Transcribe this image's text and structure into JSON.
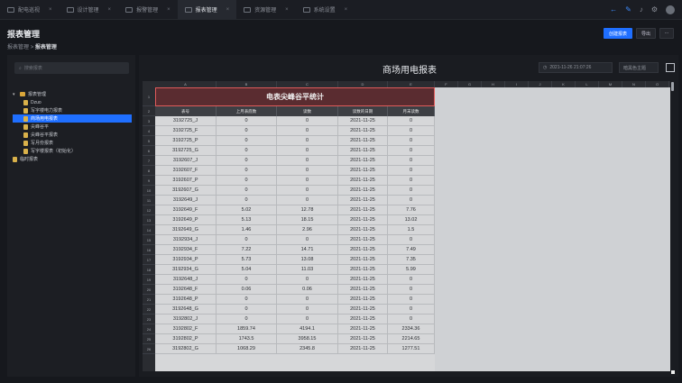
{
  "topbar": {
    "tabs": [
      {
        "label": "配电巡视",
        "active": false
      },
      {
        "label": "设计管理",
        "active": false
      },
      {
        "label": "报警管理",
        "active": false
      },
      {
        "label": "报表管理",
        "active": true
      },
      {
        "label": "资源管理",
        "active": false
      },
      {
        "label": "系统设置",
        "active": false
      }
    ]
  },
  "header": {
    "title": "报表管理",
    "breadcrumb_root": "报表管理",
    "breadcrumb_sep": ">",
    "breadcrumb_current": "报表管理",
    "create_label": "创建报表",
    "export_label": "导出",
    "more_label": "···"
  },
  "sidebar": {
    "search_placeholder": "搜索报表",
    "tree": [
      {
        "label": "报表管理",
        "level": 0,
        "type": "folder",
        "selected": false
      },
      {
        "label": "Dzuo",
        "level": 1,
        "type": "doc",
        "selected": false
      },
      {
        "label": "写字楼电力报表",
        "level": 1,
        "type": "doc",
        "selected": false
      },
      {
        "label": "商场用电报表",
        "level": 1,
        "type": "doc",
        "selected": true
      },
      {
        "label": "尖峰谷平",
        "level": 1,
        "type": "doc",
        "selected": false
      },
      {
        "label": "尖峰谷平报表",
        "level": 1,
        "type": "doc",
        "selected": false
      },
      {
        "label": "写月份报表",
        "level": 1,
        "type": "doc",
        "selected": false
      },
      {
        "label": "写字楼报表（初始化）",
        "level": 1,
        "type": "doc",
        "selected": false
      },
      {
        "label": "临时报表",
        "level": 0,
        "type": "doc",
        "selected": false
      }
    ]
  },
  "report": {
    "title": "商场用电报表",
    "time": "2021-11-26 21:07:26",
    "theme": "暗黑色主题",
    "sheet_title": "电表尖峰谷平统计",
    "col_letters": [
      "A",
      "B",
      "C",
      "D",
      "E",
      "F",
      "G",
      "H",
      "I",
      "J",
      "K",
      "L",
      "M",
      "N",
      "O"
    ],
    "headers": [
      "表号",
      "上月表底数",
      "读数",
      "读数的日期",
      "月末读数"
    ],
    "rows": [
      [
        "3192725_J",
        "0",
        "0",
        "2021-11-25",
        "0"
      ],
      [
        "3192725_F",
        "0",
        "0",
        "2021-11-25",
        "0"
      ],
      [
        "3192725_P",
        "0",
        "0",
        "2021-11-25",
        "0"
      ],
      [
        "3192725_G",
        "0",
        "0",
        "2021-11-25",
        "0"
      ],
      [
        "3192607_J",
        "0",
        "0",
        "2021-11-25",
        "0"
      ],
      [
        "3192607_F",
        "0",
        "0",
        "2021-11-25",
        "0"
      ],
      [
        "3192607_P",
        "0",
        "0",
        "2021-11-25",
        "0"
      ],
      [
        "3192607_G",
        "0",
        "0",
        "2021-11-25",
        "0"
      ],
      [
        "3192649_J",
        "0",
        "0",
        "2021-11-25",
        "0"
      ],
      [
        "3192649_F",
        "5.02",
        "12.78",
        "2021-11-25",
        "7.76"
      ],
      [
        "3192649_P",
        "5.13",
        "18.15",
        "2021-11-25",
        "13.02"
      ],
      [
        "3192649_G",
        "1.46",
        "2.96",
        "2021-11-25",
        "1.5"
      ],
      [
        "3192934_J",
        "0",
        "0",
        "2021-11-25",
        "0"
      ],
      [
        "3192934_F",
        "7.22",
        "14.71",
        "2021-11-25",
        "7.49"
      ],
      [
        "3192934_P",
        "5.73",
        "13.08",
        "2021-11-25",
        "7.35"
      ],
      [
        "3192934_G",
        "5.04",
        "11.03",
        "2021-11-25",
        "5.99"
      ],
      [
        "3192648_J",
        "0",
        "0",
        "2021-11-25",
        "0"
      ],
      [
        "3192648_F",
        "0.06",
        "0.06",
        "2021-11-25",
        "0"
      ],
      [
        "3192648_P",
        "0",
        "0",
        "2021-11-25",
        "0"
      ],
      [
        "3192648_G",
        "0",
        "0",
        "2021-11-25",
        "0"
      ],
      [
        "3192802_J",
        "0",
        "0",
        "2021-11-25",
        "0"
      ],
      [
        "3192802_F",
        "1859.74",
        "4194.1",
        "2021-11-25",
        "2334.36"
      ],
      [
        "3192802_P",
        "1743.5",
        "3958.15",
        "2021-11-25",
        "2214.65"
      ],
      [
        "3192802_G",
        "1068.29",
        "2345.8",
        "2021-11-25",
        "1277.51"
      ]
    ]
  }
}
